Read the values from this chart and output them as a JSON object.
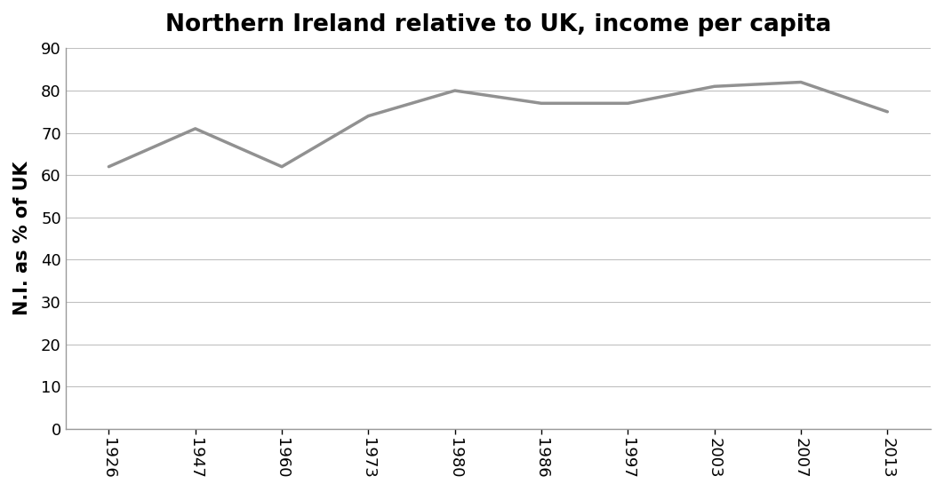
{
  "title": "Northern Ireland relative to UK, income per capita",
  "xlabel": "",
  "ylabel": "N.I. as % of UK",
  "years": [
    "1926",
    "1947",
    "1960",
    "1973",
    "1980",
    "1986",
    "1997",
    "2003",
    "2007",
    "2013"
  ],
  "values": [
    62,
    71,
    62,
    74,
    80,
    77,
    77,
    81,
    82,
    75
  ],
  "ylim": [
    0,
    90
  ],
  "yticks": [
    0,
    10,
    20,
    30,
    40,
    50,
    60,
    70,
    80,
    90
  ],
  "line_color": "#919191",
  "line_width": 2.5,
  "grid_color": "#c0c0c0",
  "background_color": "#ffffff",
  "title_fontsize": 19,
  "axis_label_fontsize": 15,
  "tick_fontsize": 13,
  "spine_color": "#999999"
}
